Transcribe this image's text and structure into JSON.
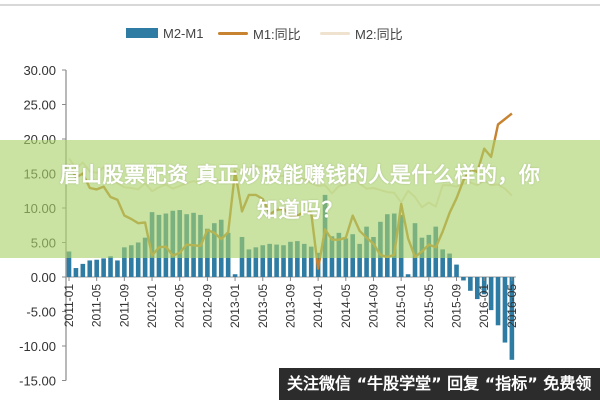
{
  "chart_data": {
    "type": "bar+line",
    "title": "",
    "xlabel": "",
    "ylabel": "",
    "ylim": [
      -15,
      30
    ],
    "yticks": [
      "30.00",
      "25.00",
      "20.00",
      "15.00",
      "10.00",
      "5.00",
      "0.00",
      "-5.00",
      "-10.00",
      "-15.00"
    ],
    "xtick_labels": [
      "2011-01",
      "2011-05",
      "2011-09",
      "2012-01",
      "2012-05",
      "2012-09",
      "2013-01",
      "2013-05",
      "2013-09",
      "2014-01",
      "2014-05",
      "2014-09",
      "2015-01",
      "2015-05",
      "2015-09",
      "2016-01",
      "2016-05"
    ],
    "legend": [
      "M2-M1",
      "M1:同比",
      "M2:同比"
    ],
    "legend_position": "top",
    "grid": false,
    "x_start": "2011-01",
    "x_end": "2016-05",
    "series": [
      {
        "name": "M2-M1",
        "type": "bar",
        "color": "#2e7ca3",
        "values": [
          3.7,
          1.3,
          1.9,
          2.4,
          2.5,
          2.7,
          3.0,
          2.4,
          4.3,
          4.6,
          5.0,
          5.7,
          9.4,
          9.0,
          9.2,
          9.6,
          9.7,
          9.1,
          9.3,
          9.0,
          7.0,
          7.8,
          8.3,
          6.4,
          0.4,
          5.8,
          4.0,
          4.3,
          4.6,
          4.8,
          4.7,
          4.6,
          5.1,
          5.2,
          4.8,
          4.4,
          3.5,
          11.9,
          5.9,
          6.4,
          5.6,
          6.2,
          4.8,
          7.3,
          5.8,
          8.0,
          9.1,
          9.2,
          9.0,
          0.4,
          7.8,
          5.7,
          6.1,
          7.3,
          4.0,
          3.4,
          1.8,
          -0.5,
          -2.0,
          -3.2,
          -2.5,
          -4.8,
          -7.0,
          -9.5,
          -12.0
        ]
      },
      {
        "name": "M1:同比",
        "type": "line",
        "color": "#c7832f",
        "values": [
          16.3,
          14.4,
          15.0,
          12.9,
          12.7,
          13.1,
          11.6,
          11.2,
          8.9,
          8.4,
          7.8,
          7.9,
          3.1,
          4.3,
          4.4,
          3.1,
          3.5,
          4.7,
          4.6,
          4.5,
          6.8,
          6.4,
          5.5,
          6.5,
          15.3,
          9.5,
          11.9,
          11.9,
          11.3,
          9.1,
          9.7,
          9.9,
          8.9,
          8.9,
          9.4,
          9.3,
          1.2,
          6.9,
          5.4,
          5.4,
          5.7,
          8.9,
          6.7,
          5.7,
          4.8,
          3.2,
          2.9,
          3.2,
          10.6,
          5.6,
          2.9,
          3.7,
          4.7,
          4.3,
          6.6,
          9.3,
          11.4,
          14.0,
          15.7,
          15.2,
          18.6,
          17.4,
          22.1,
          22.9,
          23.7
        ]
      },
      {
        "name": "M2:同比",
        "type": "line",
        "color": "#efe2cf",
        "values": [
          17.2,
          15.7,
          16.6,
          15.3,
          15.1,
          15.9,
          14.7,
          13.6,
          13.0,
          12.9,
          12.7,
          13.6,
          12.4,
          13.0,
          13.4,
          12.8,
          13.2,
          13.6,
          13.9,
          13.5,
          14.8,
          14.1,
          13.9,
          13.8,
          15.9,
          15.2,
          15.7,
          16.1,
          15.8,
          14.0,
          14.5,
          14.7,
          14.2,
          14.3,
          14.2,
          13.6,
          13.2,
          13.3,
          12.1,
          13.2,
          13.4,
          14.7,
          13.5,
          12.8,
          12.9,
          12.6,
          12.3,
          12.2,
          10.8,
          12.5,
          11.6,
          10.1,
          10.8,
          10.2,
          13.3,
          13.3,
          13.1,
          13.5,
          13.7,
          13.3,
          14.0,
          13.3,
          13.4,
          12.8,
          11.8
        ]
      }
    ]
  },
  "legend": {
    "items": [
      {
        "label": "M2-M1",
        "color": "#2e7ca3",
        "kind": "bar"
      },
      {
        "label": "M1:同比",
        "color": "#c7832f",
        "kind": "line"
      },
      {
        "label": "M2:同比",
        "color": "#efe2cf",
        "kind": "line"
      }
    ]
  },
  "overlay": {
    "title_line1": "眉山股票配资 真正炒股能赚钱的人是什么样的，你",
    "title_line2": "知道吗？",
    "color": "#aad269"
  },
  "banner": {
    "text": "关注微信 “牛股学堂” 回复 “指标” 免费领"
  }
}
